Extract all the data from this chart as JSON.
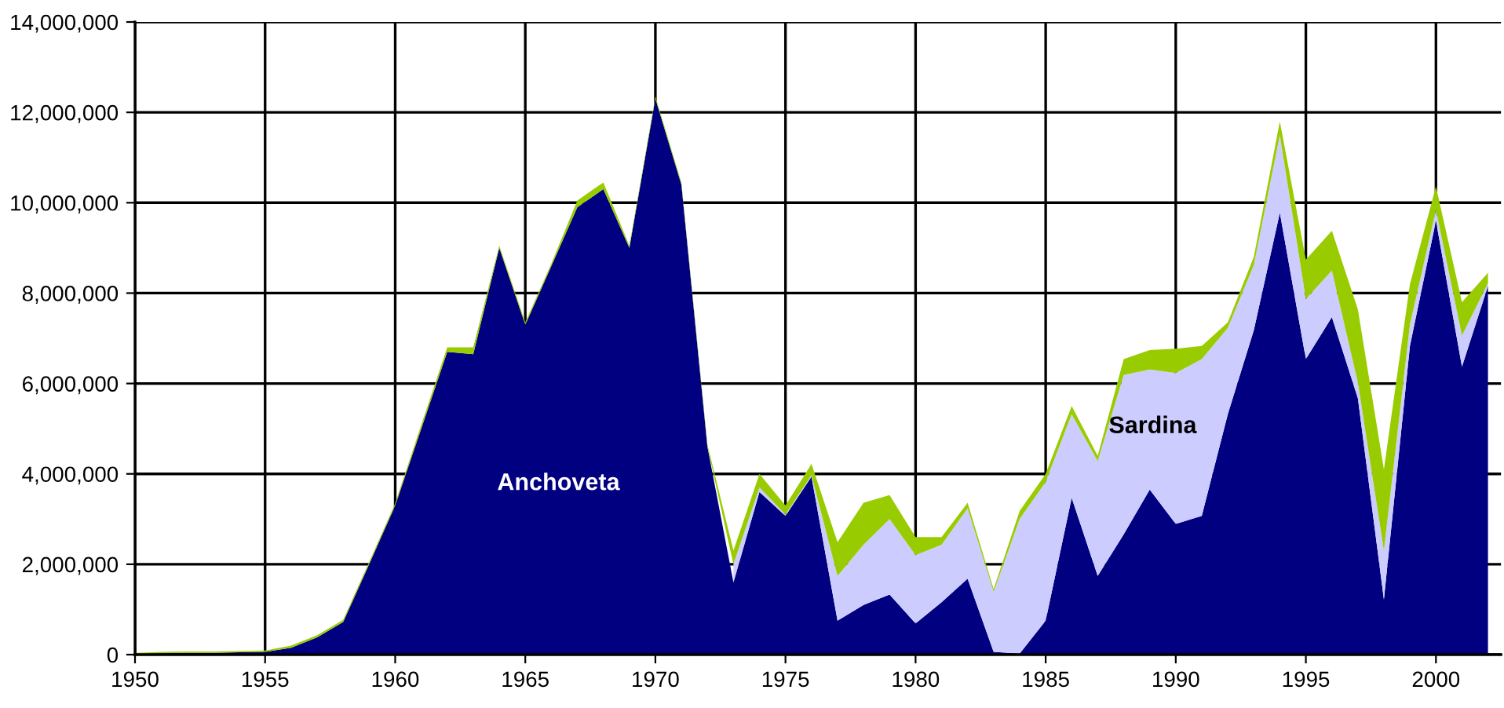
{
  "chart_data": {
    "type": "area",
    "stacked": true,
    "x": [
      1950,
      1951,
      1952,
      1953,
      1954,
      1955,
      1956,
      1957,
      1958,
      1959,
      1960,
      1961,
      1962,
      1963,
      1964,
      1965,
      1966,
      1967,
      1968,
      1969,
      1970,
      1971,
      1972,
      1973,
      1974,
      1975,
      1976,
      1977,
      1978,
      1979,
      1980,
      1981,
      1982,
      1983,
      1984,
      1985,
      1986,
      1987,
      1988,
      1989,
      1990,
      1991,
      1992,
      1993,
      1994,
      1995,
      1996,
      1997,
      1998,
      1999,
      2000,
      2001,
      2002
    ],
    "series": [
      {
        "name": "Anchoveta",
        "color": "#000080",
        "values": [
          10000,
          30000,
          40000,
          40000,
          50000,
          60000,
          150000,
          380000,
          720000,
          2000000,
          3300000,
          5000000,
          6700000,
          6650000,
          9000000,
          7300000,
          8600000,
          9900000,
          10300000,
          9000000,
          12300000,
          10400000,
          4600000,
          1600000,
          3600000,
          3070000,
          3940000,
          750000,
          1100000,
          1330000,
          690000,
          1160000,
          1680000,
          60000,
          20000,
          750000,
          3470000,
          1740000,
          2660000,
          3650000,
          2890000,
          3070000,
          5320000,
          7180000,
          9780000,
          6540000,
          7470000,
          5670000,
          1220000,
          6830000,
          9600000,
          6370000,
          8160000
        ]
      },
      {
        "name": "Sardina",
        "color": "#ccccff",
        "values": [
          null,
          null,
          null,
          null,
          null,
          null,
          null,
          null,
          null,
          null,
          null,
          null,
          null,
          null,
          null,
          null,
          null,
          null,
          null,
          null,
          null,
          null,
          null,
          400000,
          100000,
          30000,
          30000,
          990000,
          1330000,
          1670000,
          1510000,
          1270000,
          1560000,
          1330000,
          2980000,
          3070000,
          1850000,
          2540000,
          3530000,
          2660000,
          3340000,
          3470000,
          1910000,
          1440000,
          1720000,
          1330000,
          1030000,
          350000,
          1080000,
          470000,
          240000,
          690000,
          60000
        ]
      },
      {
        "color": "#99cc00",
        "values": [
          30000,
          30000,
          30000,
          30000,
          30000,
          30000,
          50000,
          50000,
          50000,
          50000,
          50000,
          80000,
          100000,
          150000,
          50000,
          50000,
          50000,
          150000,
          150000,
          50000,
          50000,
          50000,
          50000,
          300000,
          300000,
          200000,
          250000,
          750000,
          930000,
          530000,
          400000,
          170000,
          120000,
          60000,
          180000,
          180000,
          180000,
          120000,
          350000,
          430000,
          540000,
          290000,
          120000,
          180000,
          300000,
          870000,
          880000,
          1620000,
          1800000,
          900000,
          520000,
          740000,
          230000
        ]
      }
    ],
    "xlim": [
      1950,
      2002.5
    ],
    "xticks": [
      1950,
      1955,
      1960,
      1965,
      1970,
      1975,
      1980,
      1985,
      1990,
      1995,
      2000
    ],
    "ylim": [
      0,
      14000000
    ],
    "yticks": [
      0,
      {
        "value": 2000000,
        "label": "2,000,000"
      },
      {
        "value": 4000000,
        "label": "4,000,000"
      },
      {
        "value": 6000000,
        "label": "6,000,000"
      },
      {
        "value": 8000000,
        "label": "8,000,000"
      },
      {
        "value": 10000000,
        "label": "10,000,000"
      },
      {
        "value": 12000000,
        "label": "12,000,000"
      },
      {
        "value": 14000000,
        "label": "14,000,000"
      }
    ],
    "grid": true
  }
}
